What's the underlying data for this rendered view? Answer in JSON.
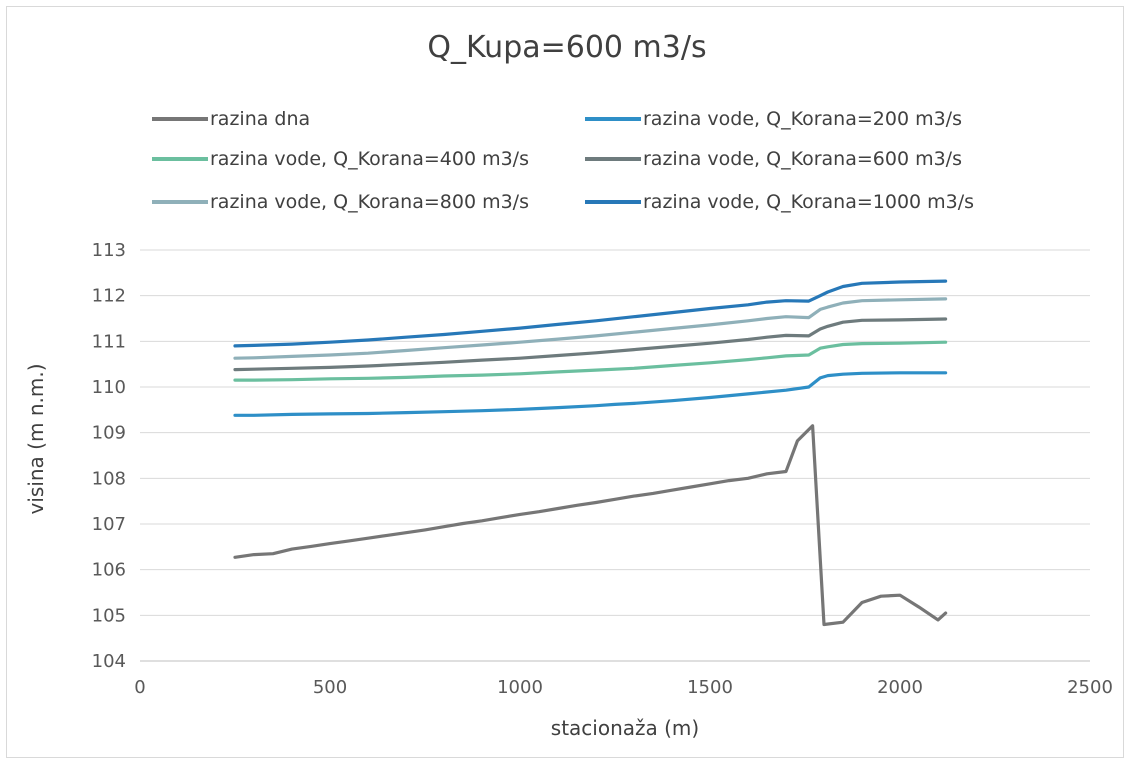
{
  "chart_data": {
    "type": "line",
    "title": "Q_Kupa=600 m3/s",
    "xlabel": "stacionaža (m)",
    "ylabel": "visina (m n.m.)",
    "xlim": [
      0,
      2500
    ],
    "ylim": [
      104,
      113
    ],
    "x_ticks": [
      "0",
      "500",
      "1000",
      "1500",
      "2000",
      "2500"
    ],
    "y_ticks": [
      "104",
      "105",
      "106",
      "107",
      "108",
      "109",
      "110",
      "111",
      "112",
      "113"
    ],
    "x_tick_values": [
      0,
      500,
      1000,
      1500,
      2000,
      2500
    ],
    "y_tick_values": [
      104,
      105,
      106,
      107,
      108,
      109,
      110,
      111,
      112,
      113
    ],
    "grid": "horizontal",
    "legend_position": "top",
    "series": [
      {
        "name": "razina dna",
        "color": "#767676",
        "x": [
          250,
          300,
          350,
          400,
          450,
          500,
          550,
          600,
          650,
          700,
          750,
          800,
          850,
          900,
          950,
          1000,
          1050,
          1100,
          1150,
          1200,
          1250,
          1300,
          1350,
          1400,
          1450,
          1500,
          1550,
          1600,
          1650,
          1700,
          1730,
          1770,
          1800,
          1850,
          1900,
          1950,
          2000,
          2050,
          2100,
          2120
        ],
        "y": [
          106.27,
          106.33,
          106.35,
          106.45,
          106.51,
          106.57,
          106.63,
          106.69,
          106.75,
          106.81,
          106.87,
          106.94,
          107.01,
          107.07,
          107.14,
          107.21,
          107.27,
          107.34,
          107.41,
          107.47,
          107.54,
          107.61,
          107.67,
          107.74,
          107.81,
          107.88,
          107.95,
          108.0,
          108.1,
          108.15,
          108.82,
          109.15,
          104.8,
          104.85,
          105.28,
          105.42,
          105.44,
          105.18,
          104.9,
          105.05
        ]
      },
      {
        "name": "razina vode, Q_Korana=200 m3/s",
        "color": "#2e8fc7",
        "x": [
          250,
          300,
          400,
          500,
          600,
          700,
          800,
          900,
          1000,
          1100,
          1200,
          1250,
          1300,
          1400,
          1500,
          1600,
          1700,
          1760,
          1790,
          1810,
          1850,
          1900,
          2000,
          2120
        ],
        "y": [
          109.38,
          109.38,
          109.4,
          109.41,
          109.42,
          109.44,
          109.46,
          109.48,
          109.51,
          109.55,
          109.59,
          109.62,
          109.64,
          109.7,
          109.77,
          109.85,
          109.93,
          110.0,
          110.2,
          110.25,
          110.28,
          110.3,
          110.31,
          110.31
        ]
      },
      {
        "name": "razina vode, Q_Korana=400 m3/s",
        "color": "#6bbf9f",
        "x": [
          250,
          300,
          400,
          500,
          600,
          700,
          800,
          900,
          1000,
          1100,
          1200,
          1300,
          1400,
          1500,
          1600,
          1650,
          1700,
          1760,
          1790,
          1810,
          1850,
          1900,
          2000,
          2120
        ],
        "y": [
          110.15,
          110.15,
          110.16,
          110.18,
          110.19,
          110.21,
          110.24,
          110.26,
          110.29,
          110.33,
          110.37,
          110.41,
          110.47,
          110.53,
          110.6,
          110.64,
          110.68,
          110.7,
          110.85,
          110.88,
          110.93,
          110.95,
          110.96,
          110.98
        ]
      },
      {
        "name": "razina vode, Q_Korana=600 m3/s",
        "color": "#6e7b7d",
        "x": [
          250,
          300,
          400,
          500,
          600,
          700,
          800,
          900,
          1000,
          1100,
          1200,
          1300,
          1400,
          1500,
          1600,
          1650,
          1700,
          1760,
          1790,
          1810,
          1850,
          1900,
          2000,
          2120
        ],
        "y": [
          110.38,
          110.39,
          110.41,
          110.43,
          110.46,
          110.5,
          110.54,
          110.59,
          110.63,
          110.69,
          110.75,
          110.82,
          110.89,
          110.96,
          111.04,
          111.09,
          111.13,
          111.12,
          111.27,
          111.33,
          111.42,
          111.46,
          111.47,
          111.49
        ]
      },
      {
        "name": "razina vode, Q_Korana=800 m3/s",
        "color": "#8fb0b9",
        "x": [
          250,
          300,
          400,
          500,
          600,
          700,
          800,
          900,
          1000,
          1100,
          1200,
          1300,
          1400,
          1500,
          1600,
          1650,
          1700,
          1760,
          1790,
          1810,
          1850,
          1900,
          2000,
          2120
        ],
        "y": [
          110.63,
          110.64,
          110.67,
          110.7,
          110.74,
          110.8,
          110.86,
          110.92,
          110.98,
          111.05,
          111.12,
          111.2,
          111.28,
          111.36,
          111.45,
          111.5,
          111.54,
          111.52,
          111.7,
          111.75,
          111.84,
          111.89,
          111.91,
          111.93
        ]
      },
      {
        "name": "razina vode, Q_Korana=1000 m3/s",
        "color": "#2778b8",
        "x": [
          250,
          300,
          400,
          500,
          600,
          700,
          800,
          900,
          1000,
          1100,
          1200,
          1300,
          1400,
          1500,
          1600,
          1650,
          1700,
          1760,
          1790,
          1810,
          1850,
          1900,
          2000,
          2120
        ],
        "y": [
          110.9,
          110.91,
          110.94,
          110.98,
          111.03,
          111.09,
          111.15,
          111.22,
          111.29,
          111.37,
          111.45,
          111.54,
          111.63,
          111.72,
          111.8,
          111.86,
          111.89,
          111.88,
          112.0,
          112.08,
          112.2,
          112.27,
          112.3,
          112.32
        ]
      }
    ]
  }
}
